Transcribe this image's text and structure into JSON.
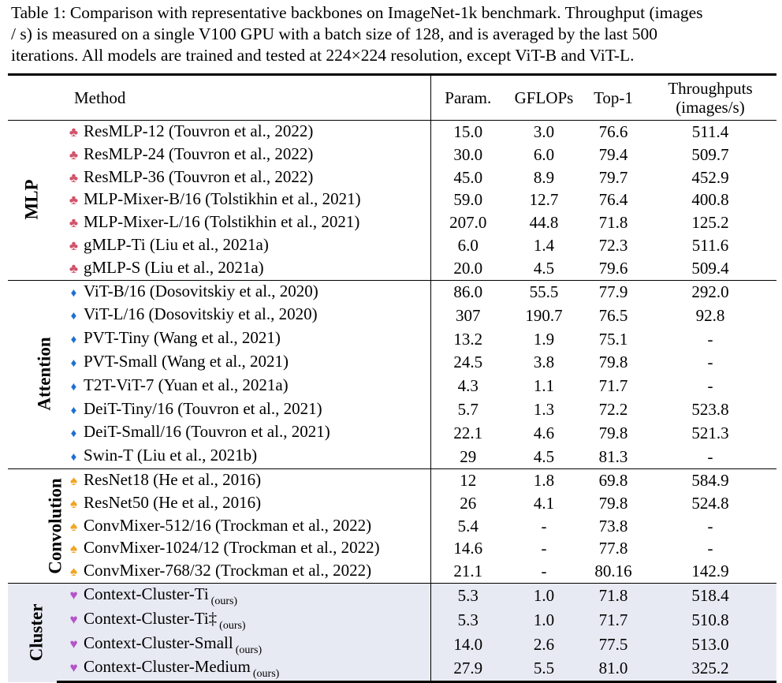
{
  "caption": {
    "line1": "Table 1: Comparison with representative backbones on ImageNet-1k benchmark. Throughput (images",
    "line2": "/ s) is measured on a single V100 GPU with a batch size of 128, and is averaged by the last 500",
    "line3": "iterations. All models are trained and tested at 224×224 resolution, except ViT-B and ViT-L."
  },
  "header": {
    "method": "Method",
    "param": "Param.",
    "gflops": "GFLOPs",
    "top1": "Top-1",
    "throughput_line1": "Throughputs",
    "throughput_line2": "(images/s)"
  },
  "icons": {
    "mlp": "club-icon",
    "attention": "diamond-icon",
    "convolution": "spade-icon",
    "cluster": "heart-icon"
  },
  "colors": {
    "club": "#d0536b",
    "diamond": "#1f6fd1",
    "spade": "#f2a41f",
    "heart": "#b553c9",
    "cluster_bg": "#e8eaf3"
  },
  "groups": {
    "mlp": {
      "label": "MLP",
      "rows": [
        {
          "method": "ResMLP-12 (Touvron et al., 2022)",
          "param": "15.0",
          "gflops": "3.0",
          "top1": "76.6",
          "throughput": "511.4"
        },
        {
          "method": "ResMLP-24 (Touvron et al., 2022)",
          "param": "30.0",
          "gflops": "6.0",
          "top1": "79.4",
          "throughput": "509.7"
        },
        {
          "method": "ResMLP-36 (Touvron et al., 2022)",
          "param": "45.0",
          "gflops": "8.9",
          "top1": "79.7",
          "throughput": "452.9"
        },
        {
          "method": "MLP-Mixer-B/16 (Tolstikhin et al., 2021)",
          "param": "59.0",
          "gflops": "12.7",
          "top1": "76.4",
          "throughput": "400.8"
        },
        {
          "method": "MLP-Mixer-L/16 (Tolstikhin et al., 2021)",
          "param": "207.0",
          "gflops": "44.8",
          "top1": "71.8",
          "throughput": "125.2"
        },
        {
          "method": "gMLP-Ti (Liu et al., 2021a)",
          "param": "6.0",
          "gflops": "1.4",
          "top1": "72.3",
          "throughput": "511.6"
        },
        {
          "method": "gMLP-S (Liu et al., 2021a)",
          "param": "20.0",
          "gflops": "4.5",
          "top1": "79.6",
          "throughput": "509.4"
        }
      ]
    },
    "attention": {
      "label": "Attention",
      "rows": [
        {
          "method": "ViT-B/16 (Dosovitskiy et al., 2020)",
          "param": "86.0",
          "gflops": "55.5",
          "top1": "77.9",
          "throughput": "292.0"
        },
        {
          "method": "ViT-L/16 (Dosovitskiy et al., 2020)",
          "param": "307",
          "gflops": "190.7",
          "top1": "76.5",
          "throughput": "92.8"
        },
        {
          "method": "PVT-Tiny (Wang et al., 2021)",
          "param": "13.2",
          "gflops": "1.9",
          "top1": "75.1",
          "throughput": "-"
        },
        {
          "method": "PVT-Small (Wang et al., 2021)",
          "param": "24.5",
          "gflops": "3.8",
          "top1": "79.8",
          "throughput": "-"
        },
        {
          "method": "T2T-ViT-7  (Yuan et al., 2021a)",
          "param": "4.3",
          "gflops": "1.1",
          "top1": "71.7",
          "throughput": "-"
        },
        {
          "method": "DeiT-Tiny/16 (Touvron et al., 2021)",
          "param": "5.7",
          "gflops": "1.3",
          "top1": "72.2",
          "throughput": "523.8"
        },
        {
          "method": "DeiT-Small/16 (Touvron et al., 2021)",
          "param": "22.1",
          "gflops": "4.6",
          "top1": "79.8",
          "throughput": "521.3"
        },
        {
          "method": "Swin-T (Liu et al., 2021b)",
          "param": "29",
          "gflops": "4.5",
          "top1": "81.3",
          "throughput": "-"
        }
      ]
    },
    "convolution": {
      "label": "Convolution",
      "rows": [
        {
          "method": "ResNet18 (He et al., 2016)",
          "param": "12",
          "gflops": "1.8",
          "top1": "69.8",
          "throughput": "584.9"
        },
        {
          "method": "ResNet50 (He et al., 2016)",
          "param": "26",
          "gflops": "4.1",
          "top1": "79.8",
          "throughput": "524.8"
        },
        {
          "method": "ConvMixer-512/16 (Trockman et al., 2022)",
          "param": "5.4",
          "gflops": "-",
          "top1": "73.8",
          "throughput": "-"
        },
        {
          "method": "ConvMixer-1024/12 (Trockman et al., 2022)",
          "param": "14.6",
          "gflops": "-",
          "top1": "77.8",
          "throughput": "-"
        },
        {
          "method": "ConvMixer-768/32 (Trockman et al., 2022)",
          "param": "21.1",
          "gflops": "-",
          "top1": "80.16",
          "throughput": "142.9"
        }
      ]
    },
    "cluster": {
      "label": "Cluster",
      "ours": "(ours)",
      "rows": [
        {
          "method": "Context-Cluster-Ti",
          "param": "5.3",
          "gflops": "1.0",
          "top1": "71.8",
          "throughput": "518.4"
        },
        {
          "method": "Context-Cluster-Ti‡",
          "param": "5.3",
          "gflops": "1.0",
          "top1": "71.7",
          "throughput": "510.8"
        },
        {
          "method": "Context-Cluster-Small",
          "param": "14.0",
          "gflops": "2.6",
          "top1": "77.5",
          "throughput": "513.0"
        },
        {
          "method": "Context-Cluster-Medium",
          "param": "27.9",
          "gflops": "5.5",
          "top1": "81.0",
          "throughput": "325.2"
        }
      ]
    }
  }
}
